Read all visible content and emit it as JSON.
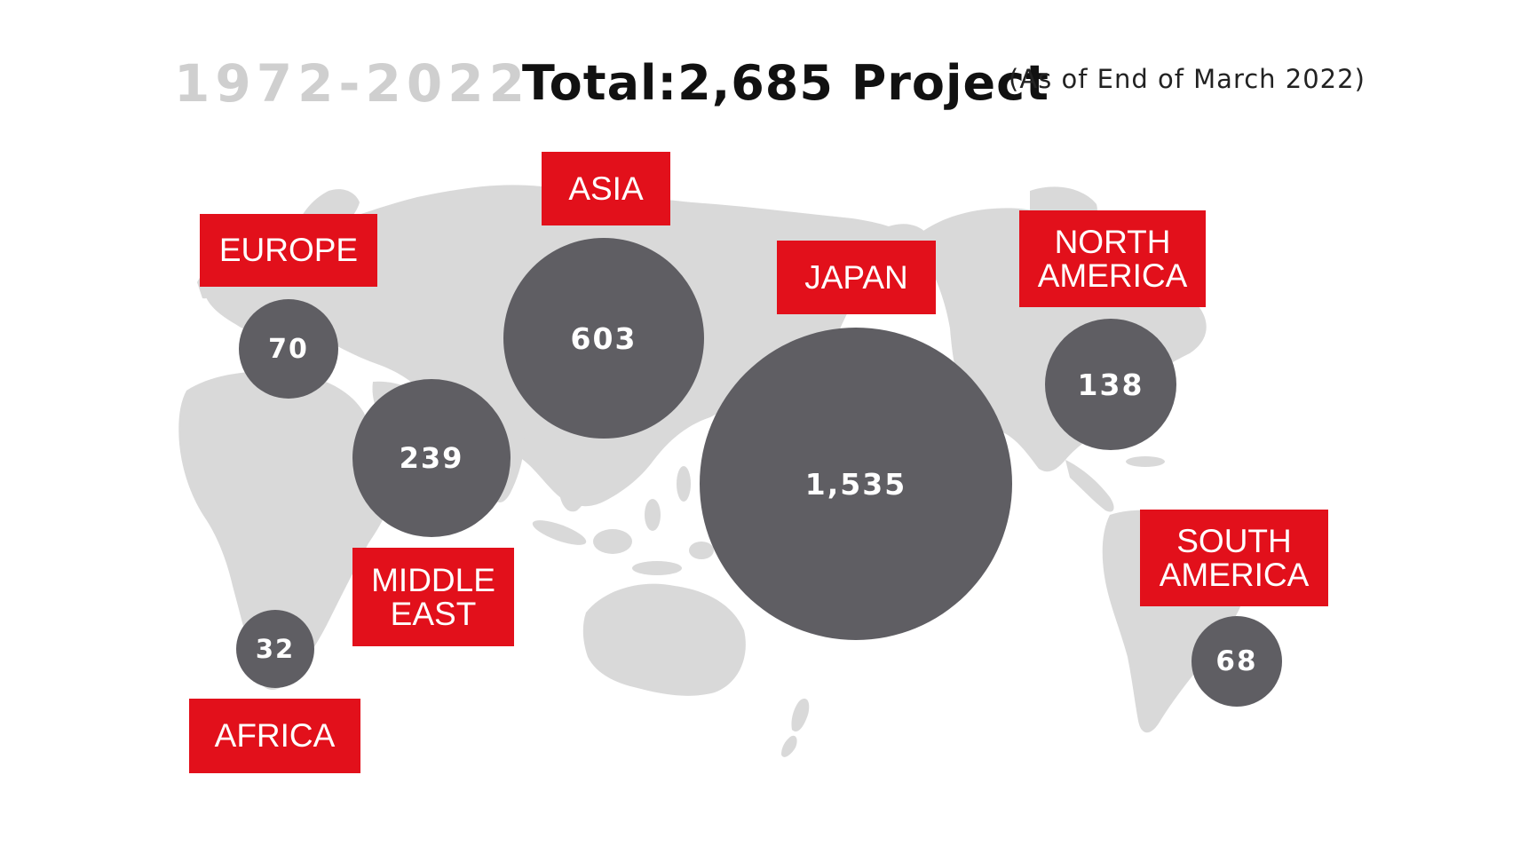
{
  "header": {
    "years": "1972-2022",
    "total": "Total:2,685 Project",
    "as_of": "(As of End of March 2022)"
  },
  "colors": {
    "label_red": "#e2101b",
    "bubble_gray": "#5f5e63",
    "map_gray": "#d9d9d9",
    "years_gray": "#cfcfcf"
  },
  "regions": [
    {
      "id": "europe",
      "label_lines": [
        "EUROPE"
      ],
      "value": "70"
    },
    {
      "id": "asia",
      "label_lines": [
        "ASIA"
      ],
      "value": "603"
    },
    {
      "id": "middle-east",
      "label_lines": [
        "MIDDLE",
        "EAST"
      ],
      "value": "239"
    },
    {
      "id": "africa",
      "label_lines": [
        "AFRICA"
      ],
      "value": "32"
    },
    {
      "id": "japan",
      "label_lines": [
        "JAPAN"
      ],
      "value": "1,535"
    },
    {
      "id": "north-america",
      "label_lines": [
        "NORTH",
        "AMERICA"
      ],
      "value": "138"
    },
    {
      "id": "south-america",
      "label_lines": [
        "SOUTH",
        "AMERICA"
      ],
      "value": "68"
    }
  ]
}
